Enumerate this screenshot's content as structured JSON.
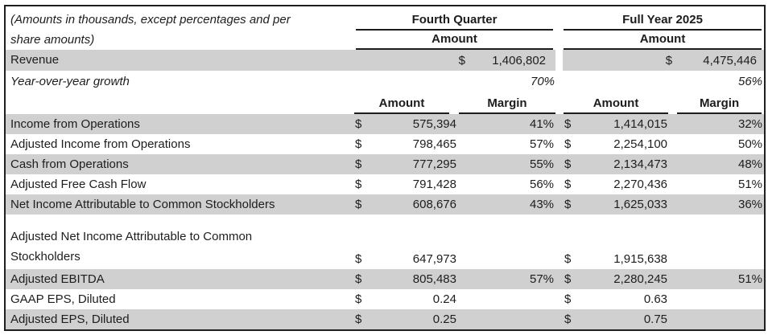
{
  "note": "(Amounts in thousands, except percentages and per\nshare amounts)",
  "currency_symbol": "$",
  "column_groups": {
    "fq": "Fourth Quarter",
    "fy": "Full Year 2025"
  },
  "subheaders": {
    "amount": "Amount",
    "margin": "Margin"
  },
  "revenue": {
    "label": "Revenue",
    "fq_amount": "1,406,802",
    "fy_amount": "4,475,446"
  },
  "growth": {
    "label": "Year-over-year growth",
    "fq": "70%",
    "fy": "56%"
  },
  "rows": [
    {
      "label": "Income from Operations",
      "fq_amount": "575,394",
      "fq_margin": "41%",
      "fy_amount": "1,414,015",
      "fy_margin": "32%",
      "shaded": true,
      "tall": false
    },
    {
      "label": "Adjusted Income from Operations",
      "fq_amount": "798,465",
      "fq_margin": "57%",
      "fy_amount": "2,254,100",
      "fy_margin": "50%",
      "shaded": false,
      "tall": false
    },
    {
      "label": "Cash from Operations",
      "fq_amount": "777,295",
      "fq_margin": "55%",
      "fy_amount": "2,134,473",
      "fy_margin": "48%",
      "shaded": true,
      "tall": false
    },
    {
      "label": "Adjusted Free Cash Flow",
      "fq_amount": "791,428",
      "fq_margin": "56%",
      "fy_amount": "2,270,436",
      "fy_margin": "51%",
      "shaded": false,
      "tall": false
    },
    {
      "label": "Net Income Attributable to Common Stockholders",
      "fq_amount": "608,676",
      "fq_margin": "43%",
      "fy_amount": "1,625,033",
      "fy_margin": "36%",
      "shaded": true,
      "tall": false
    },
    {
      "label": "Adjusted Net Income Attributable to Common\nStockholders",
      "fq_amount": "647,973",
      "fq_margin": "",
      "fy_amount": "1,915,638",
      "fy_margin": "",
      "shaded": false,
      "tall": true
    },
    {
      "label": "Adjusted EBITDA",
      "fq_amount": "805,483",
      "fq_margin": "57%",
      "fy_amount": "2,280,245",
      "fy_margin": "51%",
      "shaded": true,
      "tall": false
    },
    {
      "label": "GAAP EPS, Diluted",
      "fq_amount": "0.24",
      "fq_margin": "",
      "fy_amount": "0.63",
      "fy_margin": "",
      "shaded": false,
      "tall": false
    },
    {
      "label": "Adjusted EPS, Diluted",
      "fq_amount": "0.25",
      "fq_margin": "",
      "fy_amount": "0.75",
      "fy_margin": "",
      "shaded": true,
      "tall": false
    }
  ],
  "colors": {
    "shaded_row": "#d1d0d0",
    "text": "#1d1d1d",
    "rule": "#1c1c1c"
  }
}
